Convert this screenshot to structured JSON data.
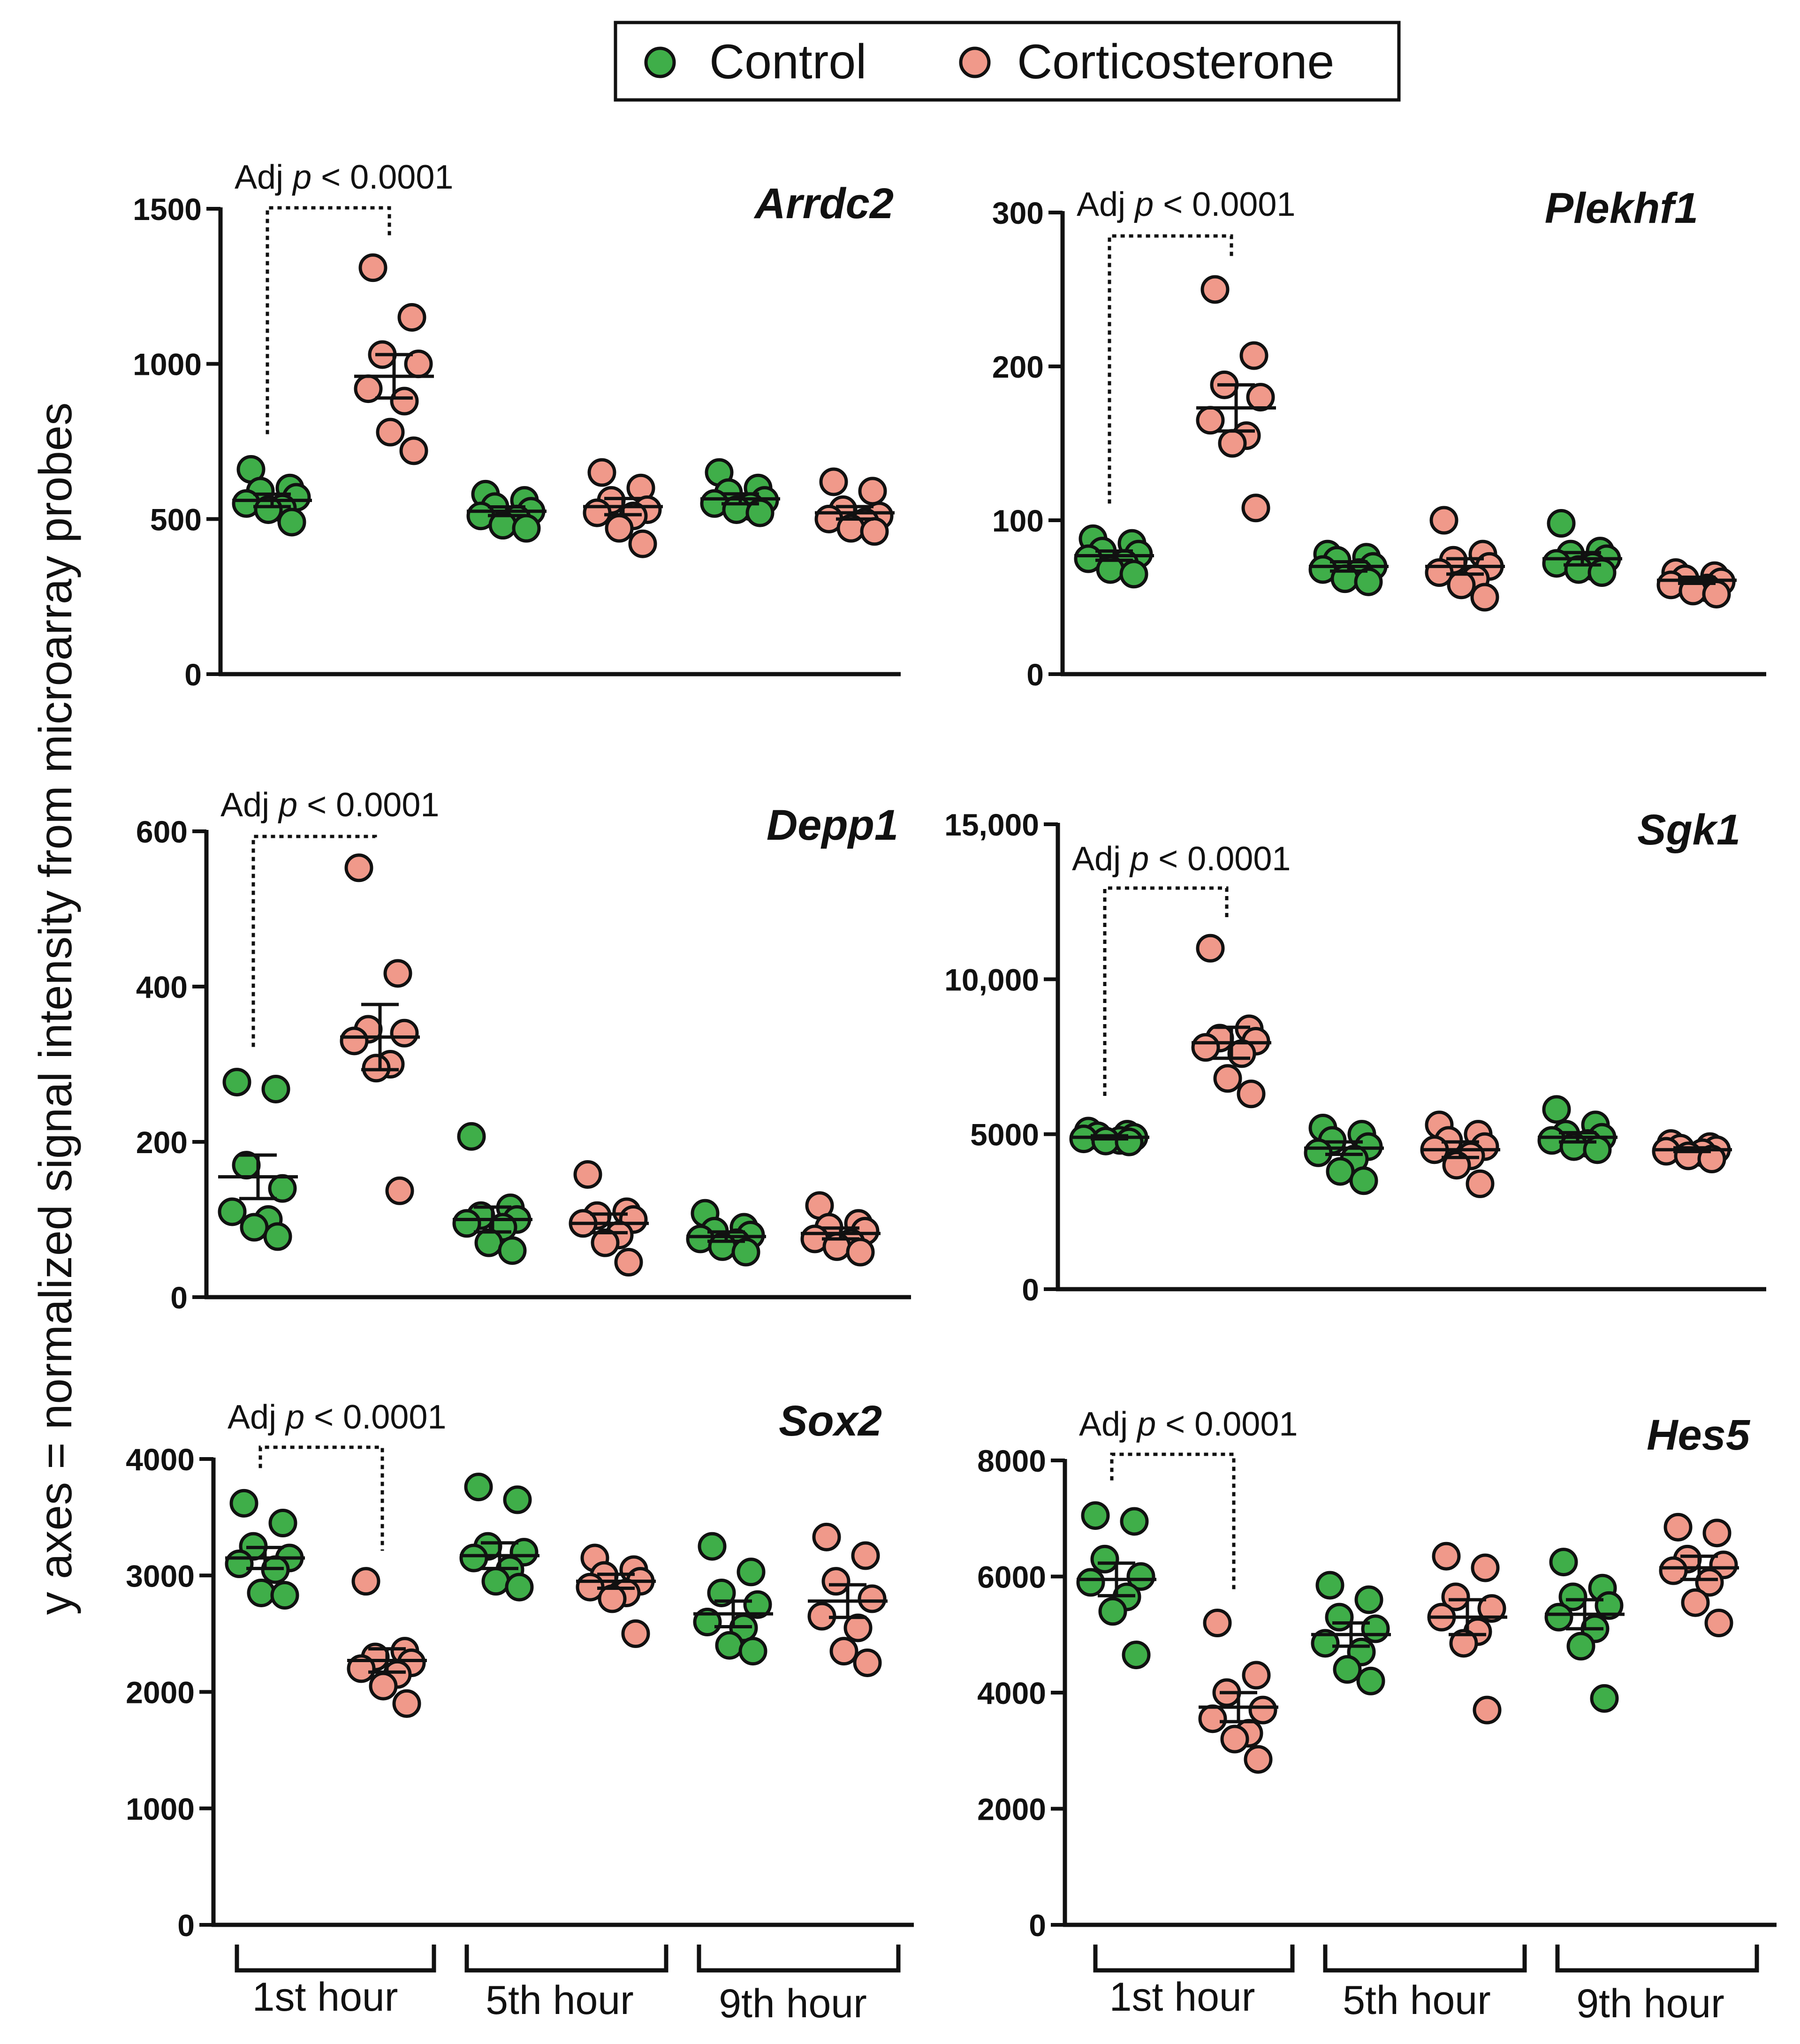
{
  "legend": {
    "items": [
      {
        "label": "Control",
        "color": "#3fae49"
      },
      {
        "label": "Corticosterone",
        "color": "#f0998a"
      }
    ]
  },
  "y_axis_title": "y axes = normalized signal intensity from microarray probes",
  "x_groups": [
    "1st hour",
    "5th hour",
    "9th hour"
  ],
  "colors": {
    "control": "#3fae49",
    "corticosterone": "#f0998a",
    "outline": "#111111"
  },
  "chart_data": [
    {
      "type": "scatter",
      "title": "Arrdc2",
      "ylim": [
        0,
        1500
      ],
      "yticks": [
        0,
        500,
        1000,
        1500
      ],
      "ytick_labels": [
        "0",
        "500",
        "1000",
        "1500"
      ],
      "annotation": {
        "prefix": "Adj ",
        "p": "p",
        "suffix": " < 0.0001",
        "from": 0,
        "to": 1
      },
      "groups": [
        {
          "series": "Control",
          "points": [
            660,
            600,
            590,
            570,
            550,
            535,
            530,
            490
          ],
          "mean": 560,
          "sem": 20
        },
        {
          "series": "Corticosterone",
          "points": [
            1310,
            1150,
            1030,
            1000,
            920,
            880,
            780,
            720
          ],
          "mean": 960,
          "sem": 70
        },
        {
          "series": "Control",
          "points": [
            580,
            560,
            540,
            525,
            510,
            500,
            480,
            470
          ],
          "mean": 525,
          "sem": 14
        },
        {
          "series": "Corticosterone",
          "points": [
            650,
            600,
            560,
            530,
            520,
            510,
            470,
            420
          ],
          "mean": 540,
          "sem": 26
        },
        {
          "series": "Control",
          "points": [
            650,
            600,
            585,
            560,
            550,
            540,
            530,
            520
          ],
          "mean": 565,
          "sem": 16
        },
        {
          "series": "Corticosterone",
          "points": [
            620,
            590,
            530,
            510,
            500,
            490,
            470,
            460
          ],
          "mean": 520,
          "sem": 20
        }
      ]
    },
    {
      "type": "scatter",
      "title": "Plekhf1",
      "ylim": [
        0,
        300
      ],
      "yticks": [
        0,
        100,
        200,
        300
      ],
      "ytick_labels": [
        "0",
        "100",
        "200",
        "300"
      ],
      "annotation": {
        "prefix": "Adj ",
        "p": "p",
        "suffix": " < 0.0001",
        "from": 0,
        "to": 1
      },
      "groups": [
        {
          "series": "Control",
          "points": [
            88,
            85,
            80,
            78,
            75,
            72,
            68,
            65
          ],
          "mean": 77,
          "sem": 3
        },
        {
          "series": "Corticosterone",
          "points": [
            250,
            207,
            188,
            180,
            165,
            155,
            150,
            108
          ],
          "mean": 173,
          "sem": 15
        },
        {
          "series": "Control",
          "points": [
            78,
            76,
            74,
            70,
            68,
            66,
            62,
            60
          ],
          "mean": 70,
          "sem": 3
        },
        {
          "series": "Corticosterone",
          "points": [
            100,
            78,
            74,
            70,
            66,
            62,
            58,
            50
          ],
          "mean": 70,
          "sem": 5
        },
        {
          "series": "Control",
          "points": [
            98,
            80,
            78,
            75,
            72,
            70,
            68,
            66
          ],
          "mean": 75,
          "sem": 4
        },
        {
          "series": "Corticosterone",
          "points": [
            66,
            64,
            62,
            60,
            58,
            56,
            54,
            52
          ],
          "mean": 61,
          "sem": 2
        }
      ]
    },
    {
      "type": "scatter",
      "title": "Depp1",
      "ylim": [
        0,
        600
      ],
      "yticks": [
        0,
        200,
        400,
        600
      ],
      "ytick_labels": [
        "0",
        "200",
        "400",
        "600"
      ],
      "annotation": {
        "prefix": "Adj ",
        "p": "p",
        "suffix": " < 0.0001",
        "from": 0,
        "to": 1
      },
      "groups": [
        {
          "series": "Control",
          "points": [
            277,
            268,
            170,
            140,
            110,
            100,
            90,
            78
          ],
          "mean": 155,
          "sem": 28
        },
        {
          "series": "Corticosterone",
          "points": [
            553,
            417,
            345,
            340,
            330,
            300,
            295,
            137
          ],
          "mean": 335,
          "sem": 42
        },
        {
          "series": "Control",
          "points": [
            207,
            115,
            105,
            100,
            95,
            90,
            70,
            60
          ],
          "mean": 100,
          "sem": 16
        },
        {
          "series": "Corticosterone",
          "points": [
            158,
            110,
            105,
            100,
            95,
            80,
            70,
            45
          ],
          "mean": 95,
          "sem": 12
        },
        {
          "series": "Control",
          "points": [
            108,
            90,
            85,
            80,
            75,
            70,
            65,
            58
          ],
          "mean": 78,
          "sem": 6
        },
        {
          "series": "Corticosterone",
          "points": [
            118,
            95,
            90,
            85,
            75,
            70,
            65,
            58
          ],
          "mean": 82,
          "sem": 7
        }
      ]
    },
    {
      "type": "scatter",
      "title": "Sgk1",
      "ylim": [
        0,
        15000
      ],
      "yticks": [
        0,
        5000,
        10000,
        15000
      ],
      "ytick_labels": [
        "0",
        "5000",
        "10,000",
        "15,000"
      ],
      "annotation": {
        "prefix": "Adj ",
        "p": "p",
        "suffix": " < 0.0001",
        "from": 0,
        "to": 1
      },
      "groups": [
        {
          "series": "Control",
          "points": [
            5100,
            5000,
            4950,
            4900,
            4850,
            4800,
            4780,
            4750
          ],
          "mean": 4900,
          "sem": 50
        },
        {
          "series": "Corticosterone",
          "points": [
            11000,
            8400,
            8100,
            8000,
            7800,
            7600,
            6800,
            6300
          ],
          "mean": 7950,
          "sem": 500
        },
        {
          "series": "Control",
          "points": [
            5200,
            5000,
            4800,
            4600,
            4400,
            4200,
            3800,
            3500
          ],
          "mean": 4550,
          "sem": 200
        },
        {
          "series": "Corticosterone",
          "points": [
            5300,
            5000,
            4800,
            4600,
            4500,
            4300,
            4000,
            3400
          ],
          "mean": 4500,
          "sem": 250
        },
        {
          "series": "Control",
          "points": [
            5800,
            5300,
            5000,
            4900,
            4800,
            4700,
            4600,
            4500
          ],
          "mean": 4900,
          "sem": 150
        },
        {
          "series": "Corticosterone",
          "points": [
            4700,
            4600,
            4550,
            4500,
            4450,
            4400,
            4300,
            4200
          ],
          "mean": 4500,
          "sem": 60
        }
      ]
    },
    {
      "type": "scatter",
      "title": "Sox2",
      "ylim": [
        0,
        4000
      ],
      "yticks": [
        0,
        1000,
        2000,
        3000,
        4000
      ],
      "ytick_labels": [
        "0",
        "1000",
        "2000",
        "3000",
        "4000"
      ],
      "annotation": {
        "prefix": "Adj ",
        "p": "p",
        "suffix": " < 0.0001",
        "from": 0,
        "to": 1
      },
      "groups": [
        {
          "series": "Control",
          "points": [
            3620,
            3450,
            3250,
            3150,
            3100,
            3050,
            2850,
            2830
          ],
          "mean": 3150,
          "sem": 90
        },
        {
          "series": "Corticosterone",
          "points": [
            2950,
            2350,
            2300,
            2250,
            2200,
            2150,
            2050,
            1900
          ],
          "mean": 2270,
          "sem": 100
        },
        {
          "series": "Control",
          "points": [
            3760,
            3650,
            3250,
            3200,
            3150,
            3050,
            2950,
            2900
          ],
          "mean": 3170,
          "sem": 110
        },
        {
          "series": "Corticosterone",
          "points": [
            3150,
            3050,
            3000,
            2950,
            2900,
            2850,
            2800,
            2500
          ],
          "mean": 2950,
          "sem": 60
        },
        {
          "series": "Control",
          "points": [
            3250,
            3030,
            2850,
            2750,
            2600,
            2550,
            2400,
            2350
          ],
          "mean": 2670,
          "sem": 110
        },
        {
          "series": "Corticosterone",
          "points": [
            3330,
            3170,
            2950,
            2800,
            2650,
            2550,
            2350,
            2250
          ],
          "mean": 2780,
          "sem": 140
        }
      ]
    },
    {
      "type": "scatter",
      "title": "Hes5",
      "ylim": [
        0,
        8000
      ],
      "yticks": [
        0,
        2000,
        4000,
        6000,
        8000
      ],
      "ytick_labels": [
        "0",
        "2000",
        "4000",
        "6000",
        "8000"
      ],
      "annotation": {
        "prefix": "Adj ",
        "p": "p",
        "suffix": " < 0.0001",
        "from": 0,
        "to": 1
      },
      "groups": [
        {
          "series": "Control",
          "points": [
            7050,
            6950,
            6300,
            6000,
            5900,
            5650,
            5400,
            4650
          ],
          "mean": 5950,
          "sem": 280
        },
        {
          "series": "Corticosterone",
          "points": [
            5200,
            4300,
            4000,
            3700,
            3550,
            3300,
            3200,
            2850
          ],
          "mean": 3750,
          "sem": 250
        },
        {
          "series": "Control",
          "points": [
            5850,
            5600,
            5300,
            5100,
            4850,
            4700,
            4400,
            4200
          ],
          "mean": 5000,
          "sem": 200
        },
        {
          "series": "Corticosterone",
          "points": [
            6350,
            6150,
            5650,
            5450,
            5300,
            5050,
            4850,
            3700
          ],
          "mean": 5300,
          "sem": 300
        },
        {
          "series": "Control",
          "points": [
            6250,
            5800,
            5650,
            5500,
            5300,
            5100,
            4800,
            3900
          ],
          "mean": 5350,
          "sem": 250
        },
        {
          "series": "Corticosterone",
          "points": [
            6850,
            6750,
            6300,
            6200,
            6100,
            5900,
            5550,
            5200
          ],
          "mean": 6150,
          "sem": 200
        }
      ]
    }
  ]
}
